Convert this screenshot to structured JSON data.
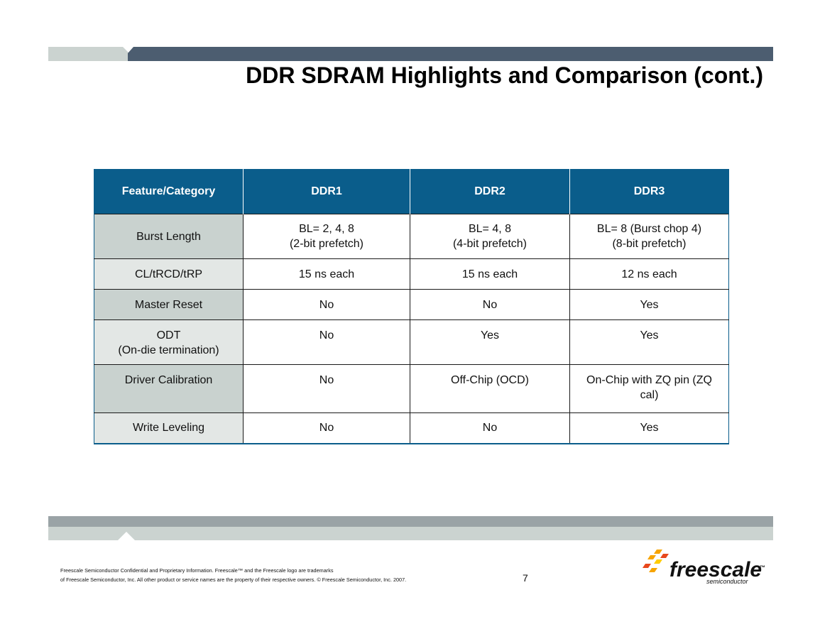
{
  "slide": {
    "title": "DDR SDRAM Highlights and Comparison (cont.)",
    "page_number": "7"
  },
  "table": {
    "headers": [
      "Feature/Category",
      "DDR1",
      "DDR2",
      "DDR3"
    ],
    "rows": [
      {
        "feature": "Burst Length",
        "ddr1": [
          "BL= 2, 4, 8",
          "(2-bit prefetch)"
        ],
        "ddr2": [
          "BL= 4, 8",
          "(4-bit prefetch)"
        ],
        "ddr3": [
          "BL= 8 (Burst chop 4)",
          "(8-bit prefetch)"
        ]
      },
      {
        "feature": "CL/tRCD/tRP",
        "ddr1": "15 ns each",
        "ddr2": "15 ns each",
        "ddr3": "12 ns each"
      },
      {
        "feature": "Master Reset",
        "ddr1": "No",
        "ddr2": "No",
        "ddr3": "Yes"
      },
      {
        "feature": [
          "ODT",
          "(On-die termination)"
        ],
        "ddr1": "No",
        "ddr2": "Yes",
        "ddr3": "Yes"
      },
      {
        "feature": "Driver Calibration",
        "ddr1": "No",
        "ddr2": "Off-Chip (OCD)",
        "ddr3": [
          "On-Chip with ZQ pin (ZQ",
          "cal)"
        ]
      },
      {
        "feature": "Write Leveling",
        "ddr1": "No",
        "ddr2": "No",
        "ddr3": "Yes"
      }
    ]
  },
  "footer": {
    "legal_line1": "Freescale Semiconductor Confidential and Proprietary Information. Freescale™ and the Freescale logo are trademarks",
    "legal_line2": "of Freescale Semiconductor, Inc. All other product or service names are the property of their respective owners. © Freescale Semiconductor, Inc. 2007.",
    "logo": {
      "name": "freescale",
      "tm": "™",
      "tagline": "semiconductor",
      "colors": [
        "#f7a400",
        "#e8481c",
        "#ffcc00"
      ]
    }
  },
  "colors": {
    "header_blue": "#0a5d8b",
    "bar_dark": "#4c5d70",
    "bar_light": "#cbd3d0",
    "bar_gray": "#9aa3a6",
    "feature_dark": "#c9d2cf",
    "feature_light": "#e3e7e5"
  }
}
